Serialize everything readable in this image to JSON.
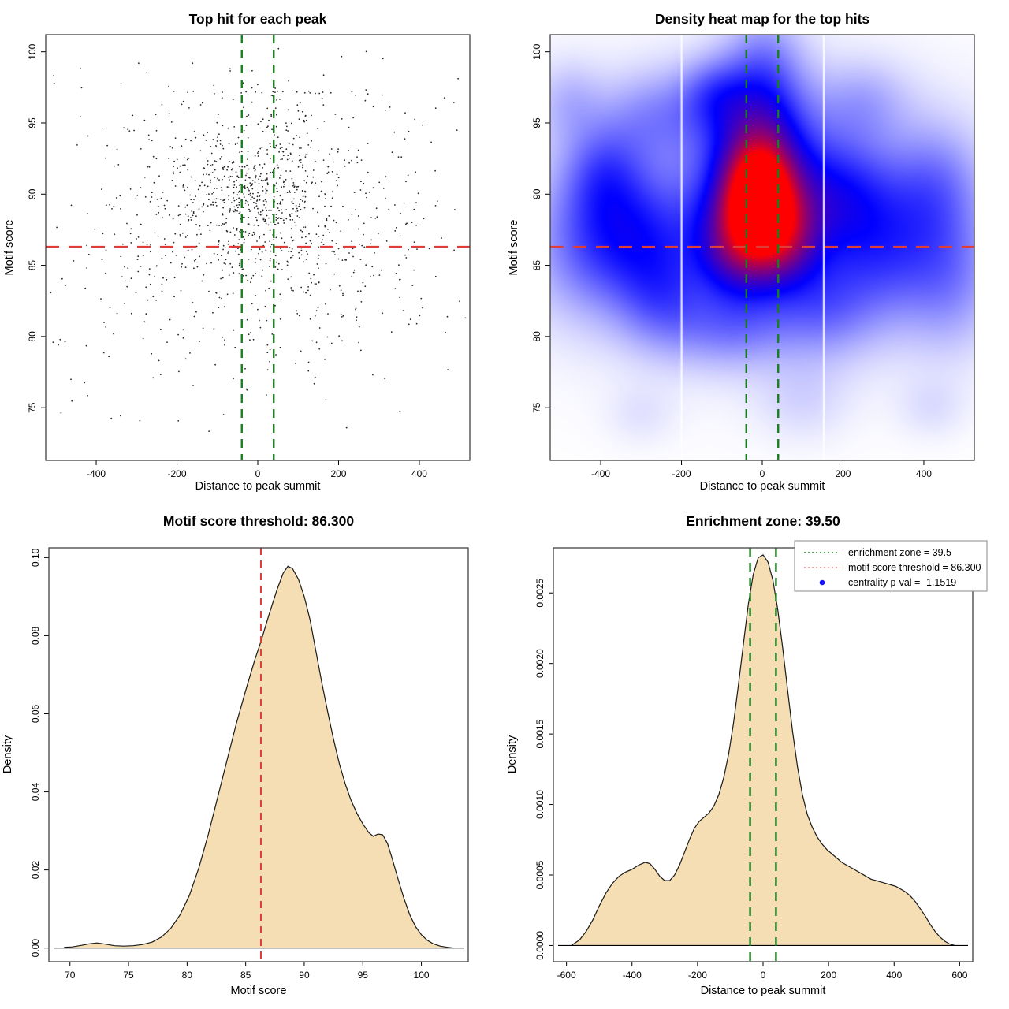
{
  "colors": {
    "background": "#ffffff",
    "frame": "#333333",
    "point": "#262626",
    "red_dashed": "#e03c38",
    "green_dashed": "#1a7d20",
    "legend_green": "#1a7d20",
    "legend_red": "#f08080",
    "legend_blue": "#1414ff",
    "density_fill": "#f5deb3",
    "curve_stroke": "#1a1a1a",
    "legend_border": "#8a8a8a"
  },
  "chart_data": [
    {
      "type": "scatter",
      "title": "Top hit for each peak",
      "xlabel": "Distance to peak summit",
      "ylabel": "Motif score",
      "xlim": [
        -525,
        525
      ],
      "ylim": [
        71.3,
        101.2
      ],
      "xticks": [
        {
          "v": -400,
          "label": "-400"
        },
        {
          "v": -200,
          "label": "-200"
        },
        {
          "v": 0,
          "label": "0"
        },
        {
          "v": 200,
          "label": "200"
        },
        {
          "v": 400,
          "label": "400"
        }
      ],
      "yticks": [
        {
          "v": 75,
          "label": "75"
        },
        {
          "v": 80,
          "label": "80"
        },
        {
          "v": 85,
          "label": "85"
        },
        {
          "v": 90,
          "label": "90"
        },
        {
          "v": 95,
          "label": "95"
        },
        {
          "v": 100,
          "label": "100"
        }
      ],
      "reference_lines": {
        "hline_y": 86.3,
        "vlines_x": [
          -39.5,
          39.5
        ]
      },
      "grid": false,
      "point_size": 0.9,
      "seed": 7,
      "point_clusters": [
        {
          "n": 420,
          "mx": 5,
          "sx": 85,
          "my": 90.3,
          "sy": 2.6
        },
        {
          "n": 300,
          "mx": 10,
          "sx": 200,
          "my": 89.0,
          "sy": 3.4
        },
        {
          "n": 240,
          "mx": 0,
          "sx": 290,
          "my": 87.5,
          "sy": 4.6
        },
        {
          "n": 130,
          "mx": 0,
          "sx": 300,
          "my": 83.0,
          "sy": 3.0
        },
        {
          "n": 70,
          "mx": 0,
          "sx": 280,
          "my": 95.5,
          "sy": 2.0
        },
        {
          "n": 120,
          "mx": 0,
          "sx": 320,
          "my": 88.0,
          "sy": 7.0
        },
        {
          "n": 22,
          "mx": 30,
          "sx": 130,
          "my": 97.15,
          "sy": 0.05
        },
        {
          "n": 18,
          "mx": 0,
          "sx": 240,
          "my": 77.5,
          "sy": 2.2
        }
      ],
      "clip": {
        "x": [
          -515,
          515
        ],
        "y": [
          72,
          100.9
        ]
      }
    },
    {
      "type": "heatmap",
      "title": "Density heat map for the top hits",
      "xlabel": "Distance to peak summit",
      "ylabel": "Motif score",
      "xlim": [
        -525,
        525
      ],
      "ylim": [
        71.3,
        101.2
      ],
      "xticks": [
        {
          "v": -400,
          "label": "-400"
        },
        {
          "v": -200,
          "label": "-200"
        },
        {
          "v": 0,
          "label": "0"
        },
        {
          "v": 200,
          "label": "200"
        },
        {
          "v": 400,
          "label": "400"
        }
      ],
      "yticks": [
        {
          "v": 75,
          "label": "75"
        },
        {
          "v": 80,
          "label": "80"
        },
        {
          "v": 85,
          "label": "85"
        },
        {
          "v": 90,
          "label": "90"
        },
        {
          "v": 95,
          "label": "95"
        },
        {
          "v": 100,
          "label": "100"
        }
      ],
      "reference_lines": {
        "hline_y": 86.3,
        "vlines_x": [
          -39.5,
          39.5
        ]
      },
      "colormap": [
        "#ffffff",
        "#0000ff",
        "#ff0000"
      ],
      "white_gridlines_x": [
        -200,
        152
      ],
      "norm": 1.5,
      "hotspot_center": {
        "x": -8,
        "y": 89.9
      },
      "blobs": [
        [
          -8,
          89.9,
          55,
          2.4,
          1.0
        ],
        [
          -5,
          89.3,
          105,
          4.0,
          0.55
        ],
        [
          0,
          88.5,
          400,
          6.5,
          0.16
        ],
        [
          -60,
          86.3,
          70,
          2.4,
          0.4
        ],
        [
          55,
          87,
          60,
          2.2,
          0.35
        ],
        [
          -10,
          94.8,
          80,
          2.6,
          0.3
        ],
        [
          5,
          99,
          70,
          2.8,
          0.22
        ],
        [
          -120,
          97,
          60,
          1.8,
          0.22
        ],
        [
          -260,
          95.5,
          90,
          2.2,
          0.18
        ],
        [
          -300,
          87,
          90,
          3.0,
          0.3
        ],
        [
          -390,
          91.5,
          70,
          2.5,
          0.24
        ],
        [
          -440,
          86.5,
          90,
          3.5,
          0.22
        ],
        [
          -250,
          82.5,
          80,
          2.5,
          0.22
        ],
        [
          200,
          90,
          90,
          3.0,
          0.28
        ],
        [
          310,
          86,
          100,
          3.5,
          0.26
        ],
        [
          430,
          90.5,
          80,
          3.0,
          0.2
        ],
        [
          470,
          84,
          80,
          3.5,
          0.18
        ],
        [
          150,
          82,
          90,
          2.5,
          0.2
        ],
        [
          -80,
          80.5,
          100,
          2.0,
          0.18
        ],
        [
          250,
          96.5,
          80,
          2.0,
          0.13
        ],
        [
          -480,
          96.5,
          60,
          2.0,
          0.12
        ],
        [
          100,
          75.5,
          80,
          2.0,
          0.07
        ],
        [
          -300,
          74.5,
          60,
          1.5,
          0.05
        ],
        [
          420,
          75,
          60,
          1.5,
          0.06
        ]
      ]
    },
    {
      "type": "density-area",
      "title": "Motif score threshold: 86.300",
      "xlabel": "Motif score",
      "ylabel": "Density",
      "xlim": [
        68.2,
        104
      ],
      "ylim": [
        -0.0035,
        0.1025
      ],
      "xticks": [
        {
          "v": 70,
          "label": "70"
        },
        {
          "v": 75,
          "label": "75"
        },
        {
          "v": 80,
          "label": "80"
        },
        {
          "v": 85,
          "label": "85"
        },
        {
          "v": 90,
          "label": "90"
        },
        {
          "v": 95,
          "label": "95"
        },
        {
          "v": 100,
          "label": "100"
        }
      ],
      "yticks": [
        {
          "v": 0,
          "label": "0.00"
        },
        {
          "v": 0.02,
          "label": "0.02"
        },
        {
          "v": 0.04,
          "label": "0.04"
        },
        {
          "v": 0.06,
          "label": "0.06"
        },
        {
          "v": 0.08,
          "label": "0.08"
        },
        {
          "v": 0.1,
          "label": "0.10"
        }
      ],
      "reference_lines": {
        "vlines_x_red": [
          86.3
        ]
      },
      "peak": {
        "x": 88.6,
        "y": 0.0978
      },
      "curve": [
        [
          69.5,
          0.0002
        ],
        [
          70.2,
          0.0003
        ],
        [
          71.0,
          0.0007
        ],
        [
          71.7,
          0.0011
        ],
        [
          72.3,
          0.0013
        ],
        [
          73.0,
          0.001
        ],
        [
          73.8,
          0.0006
        ],
        [
          74.6,
          0.0005
        ],
        [
          75.4,
          0.0006
        ],
        [
          76.2,
          0.0009
        ],
        [
          77.0,
          0.0015
        ],
        [
          77.8,
          0.0028
        ],
        [
          78.6,
          0.005
        ],
        [
          79.4,
          0.0085
        ],
        [
          80.2,
          0.0135
        ],
        [
          81.0,
          0.0205
        ],
        [
          81.8,
          0.029
        ],
        [
          82.6,
          0.0385
        ],
        [
          83.4,
          0.048
        ],
        [
          84.2,
          0.0575
        ],
        [
          85.0,
          0.066
        ],
        [
          85.8,
          0.074
        ],
        [
          86.3,
          0.0785
        ],
        [
          87.0,
          0.0855
        ],
        [
          87.7,
          0.092
        ],
        [
          88.2,
          0.096
        ],
        [
          88.6,
          0.0978
        ],
        [
          89.0,
          0.0972
        ],
        [
          89.5,
          0.0945
        ],
        [
          90.0,
          0.09
        ],
        [
          90.5,
          0.084
        ],
        [
          91.0,
          0.076
        ],
        [
          91.5,
          0.068
        ],
        [
          92.0,
          0.0605
        ],
        [
          92.5,
          0.0535
        ],
        [
          93.0,
          0.0472
        ],
        [
          93.5,
          0.042
        ],
        [
          94.0,
          0.0378
        ],
        [
          94.5,
          0.0345
        ],
        [
          95.0,
          0.0318
        ],
        [
          95.5,
          0.0296
        ],
        [
          95.9,
          0.0286
        ],
        [
          96.3,
          0.0292
        ],
        [
          96.7,
          0.029
        ],
        [
          97.1,
          0.0268
        ],
        [
          97.5,
          0.023
        ],
        [
          98.0,
          0.0178
        ],
        [
          98.5,
          0.0128
        ],
        [
          99.0,
          0.0086
        ],
        [
          99.5,
          0.0055
        ],
        [
          100.0,
          0.0034
        ],
        [
          100.5,
          0.002
        ],
        [
          101.0,
          0.0011
        ],
        [
          101.6,
          0.0005
        ],
        [
          102.2,
          0.0002
        ],
        [
          102.8,
          0.0
        ]
      ]
    },
    {
      "type": "density-area",
      "title": "Enrichment zone: 39.50",
      "xlabel": "Distance to peak summit",
      "ylabel": "Density",
      "xlim": [
        -640,
        640
      ],
      "ylim": [
        -0.000115,
        0.00282
      ],
      "xticks": [
        {
          "v": -600,
          "label": "-600"
        },
        {
          "v": -400,
          "label": "-400"
        },
        {
          "v": -200,
          "label": "-200"
        },
        {
          "v": 0,
          "label": "0"
        },
        {
          "v": 200,
          "label": "200"
        },
        {
          "v": 400,
          "label": "400"
        },
        {
          "v": 600,
          "label": "600"
        }
      ],
      "yticks": [
        {
          "v": 0,
          "label": "0.0000"
        },
        {
          "v": 0.0005,
          "label": "0.0005"
        },
        {
          "v": 0.001,
          "label": "0.0010"
        },
        {
          "v": 0.0015,
          "label": "0.0015"
        },
        {
          "v": 0.002,
          "label": "0.0020"
        },
        {
          "v": 0.0025,
          "label": "0.0025"
        }
      ],
      "reference_lines": {
        "vlines_x": [
          -39.5,
          39.5
        ]
      },
      "peak": {
        "x": 0,
        "y": 0.00277
      },
      "curve": [
        [
          -585,
          0.0
        ],
        [
          -560,
          4e-05
        ],
        [
          -540,
          0.0001
        ],
        [
          -520,
          0.00018
        ],
        [
          -500,
          0.00028
        ],
        [
          -480,
          0.00037
        ],
        [
          -460,
          0.00044
        ],
        [
          -440,
          0.00049
        ],
        [
          -420,
          0.00052
        ],
        [
          -400,
          0.00054
        ],
        [
          -380,
          0.00057
        ],
        [
          -360,
          0.00059
        ],
        [
          -345,
          0.00058
        ],
        [
          -330,
          0.00054
        ],
        [
          -315,
          0.00049
        ],
        [
          -300,
          0.00046
        ],
        [
          -285,
          0.00046
        ],
        [
          -270,
          0.0005
        ],
        [
          -255,
          0.00057
        ],
        [
          -240,
          0.00066
        ],
        [
          -225,
          0.00075
        ],
        [
          -210,
          0.00083
        ],
        [
          -195,
          0.00088
        ],
        [
          -180,
          0.00091
        ],
        [
          -165,
          0.00094
        ],
        [
          -150,
          0.00099
        ],
        [
          -135,
          0.00107
        ],
        [
          -120,
          0.00119
        ],
        [
          -105,
          0.00136
        ],
        [
          -90,
          0.00158
        ],
        [
          -75,
          0.00185
        ],
        [
          -60,
          0.00214
        ],
        [
          -45,
          0.00242
        ],
        [
          -30,
          0.00263
        ],
        [
          -15,
          0.00275
        ],
        [
          0,
          0.00277
        ],
        [
          15,
          0.00272
        ],
        [
          30,
          0.00259
        ],
        [
          45,
          0.00238
        ],
        [
          60,
          0.00211
        ],
        [
          75,
          0.00181
        ],
        [
          90,
          0.00152
        ],
        [
          105,
          0.00127
        ],
        [
          120,
          0.00107
        ],
        [
          135,
          0.00093
        ],
        [
          150,
          0.00084
        ],
        [
          165,
          0.00077
        ],
        [
          180,
          0.00072
        ],
        [
          195,
          0.00068
        ],
        [
          210,
          0.00065
        ],
        [
          225,
          0.00062
        ],
        [
          240,
          0.00059
        ],
        [
          255,
          0.00057
        ],
        [
          270,
          0.00055
        ],
        [
          285,
          0.00053
        ],
        [
          300,
          0.00051
        ],
        [
          315,
          0.00049
        ],
        [
          330,
          0.00047
        ],
        [
          345,
          0.00046
        ],
        [
          360,
          0.00045
        ],
        [
          375,
          0.00044
        ],
        [
          390,
          0.00043
        ],
        [
          405,
          0.00042
        ],
        [
          420,
          0.0004
        ],
        [
          435,
          0.00038
        ],
        [
          450,
          0.00035
        ],
        [
          465,
          0.00031
        ],
        [
          480,
          0.00026
        ],
        [
          495,
          0.00021
        ],
        [
          510,
          0.00015
        ],
        [
          525,
          0.0001
        ],
        [
          540,
          6e-05
        ],
        [
          555,
          3e-05
        ],
        [
          570,
          1e-05
        ],
        [
          585,
          0.0
        ]
      ],
      "legend": {
        "position": "top-right",
        "items": [
          {
            "label": "enrichment zone = 39.5",
            "marker": "dotted-line",
            "color_key": "legend_green"
          },
          {
            "label": "motif score threshold = 86.300",
            "marker": "dotted-line",
            "color_key": "legend_red"
          },
          {
            "label": "centrality p-val = -1.1519",
            "marker": "dot",
            "color_key": "legend_blue"
          }
        ]
      }
    }
  ]
}
